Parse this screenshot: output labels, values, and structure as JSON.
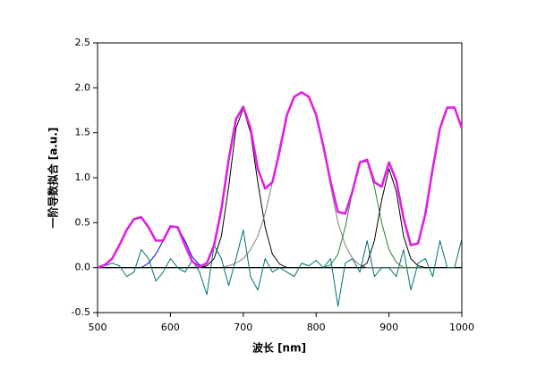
{
  "chart_data": {
    "type": "line",
    "x_label": "波长 [nm]",
    "y_label": "一阶导数拟合 [a.u.]",
    "x": [
      500,
      510,
      520,
      530,
      540,
      550,
      560,
      570,
      580,
      590,
      600,
      610,
      620,
      630,
      640,
      650,
      660,
      670,
      680,
      690,
      700,
      710,
      720,
      730,
      740,
      750,
      760,
      770,
      780,
      790,
      800,
      810,
      820,
      830,
      840,
      850,
      860,
      870,
      880,
      890,
      900,
      910,
      920,
      930,
      940,
      950,
      960,
      970,
      980,
      990,
      1000
    ],
    "series": [
      {
        "color": "#808000",
        "width": 1.2,
        "values": [
          0,
          0,
          0,
          0,
          0,
          0,
          0,
          0,
          0,
          0,
          0,
          0,
          0,
          0,
          0,
          0,
          0,
          0,
          0,
          0,
          0,
          0,
          0,
          0,
          0,
          0,
          0,
          0,
          0,
          0,
          0,
          0,
          0,
          0,
          0,
          0,
          0,
          0,
          0,
          0,
          0,
          0,
          0,
          0,
          0,
          0,
          0,
          0,
          0,
          0,
          0
        ]
      },
      {
        "color": "#0000cc",
        "width": 1,
        "values": [
          0,
          0,
          0,
          0,
          0,
          0,
          0,
          0.05,
          0.15,
          0.3,
          0.45,
          0.45,
          0.3,
          0.12,
          0.03,
          0,
          0,
          0,
          0,
          0,
          0,
          0,
          0,
          0,
          0,
          0,
          0,
          0,
          0,
          0,
          0,
          0,
          0,
          0,
          0,
          0,
          0,
          0,
          0,
          0,
          0,
          0,
          0,
          0,
          0,
          0,
          0,
          0,
          0,
          0,
          0
        ]
      },
      {
        "color": "#000000",
        "width": 1,
        "values": [
          0,
          0,
          0,
          0,
          0,
          0,
          0,
          0,
          0,
          0,
          0,
          0,
          0,
          0,
          0,
          0.02,
          0.1,
          0.35,
          0.9,
          1.55,
          1.77,
          1.5,
          0.95,
          0.45,
          0.15,
          0.04,
          0,
          0,
          0,
          0,
          0,
          0,
          0,
          0,
          0,
          0,
          0,
          0,
          0,
          0,
          0,
          0,
          0,
          0,
          0,
          0,
          0,
          0,
          0,
          0,
          0
        ]
      },
      {
        "color": "#808080",
        "width": 1,
        "values": [
          0,
          0,
          0,
          0,
          0,
          0,
          0,
          0,
          0,
          0,
          0,
          0,
          0,
          0,
          0,
          0,
          0,
          0,
          0.02,
          0.05,
          0.1,
          0.2,
          0.35,
          0.6,
          0.95,
          1.35,
          1.7,
          1.9,
          1.95,
          1.9,
          1.7,
          1.35,
          0.9,
          0.5,
          0.25,
          0.1,
          0.03,
          0,
          0,
          0,
          0,
          0,
          0,
          0,
          0,
          0,
          0,
          0,
          0,
          0,
          0
        ]
      },
      {
        "color": "#2e7d32",
        "width": 1,
        "values": [
          0,
          0,
          0,
          0,
          0,
          0,
          0,
          0,
          0,
          0,
          0,
          0,
          0,
          0,
          0,
          0,
          0,
          0,
          0,
          0,
          0,
          0,
          0,
          0,
          0,
          0,
          0,
          0,
          0,
          0,
          0,
          0,
          0.03,
          0.15,
          0.45,
          0.85,
          1.17,
          1.18,
          0.9,
          0.5,
          0.2,
          0.06,
          0,
          0,
          0,
          0,
          0,
          0,
          0,
          0,
          0
        ]
      },
      {
        "color": "#000000",
        "width": 1,
        "values": [
          0,
          0,
          0,
          0,
          0,
          0,
          0,
          0,
          0,
          0,
          0,
          0,
          0,
          0,
          0,
          0,
          0,
          0,
          0,
          0,
          0,
          0,
          0,
          0,
          0,
          0,
          0,
          0,
          0,
          0,
          0,
          0,
          0,
          0,
          0,
          0,
          0,
          0.05,
          0.3,
          0.75,
          1.1,
          0.85,
          0.35,
          0.1,
          0.02,
          0,
          0,
          0,
          0,
          0,
          0
        ]
      },
      {
        "color": "#007070",
        "width": 1,
        "values": [
          0,
          0.02,
          0.05,
          0.02,
          -0.1,
          -0.05,
          0.2,
          0.1,
          -0.15,
          -0.05,
          0.1,
          0,
          -0.05,
          0.08,
          -0.05,
          -0.3,
          0.25,
          0.1,
          -0.2,
          0.1,
          0.42,
          -0.1,
          -0.25,
          0.1,
          -0.05,
          0,
          -0.05,
          -0.1,
          0.05,
          0.02,
          0.08,
          0,
          0.1,
          -0.43,
          0.05,
          0.1,
          -0.05,
          0.3,
          -0.1,
          0,
          0,
          -0.1,
          0.2,
          -0.25,
          0.05,
          0.1,
          -0.1,
          0.3,
          0,
          0,
          0.32
        ]
      },
      {
        "color": "#e020e0",
        "width": 2.6,
        "values": [
          0,
          0.03,
          0.1,
          0.25,
          0.42,
          0.54,
          0.56,
          0.45,
          0.3,
          0.3,
          0.46,
          0.45,
          0.25,
          0.07,
          0.01,
          0.05,
          0.25,
          0.65,
          1.2,
          1.65,
          1.79,
          1.55,
          1.1,
          0.88,
          0.95,
          1.3,
          1.7,
          1.9,
          1.95,
          1.9,
          1.7,
          1.35,
          0.95,
          0.62,
          0.6,
          0.85,
          1.17,
          1.2,
          0.95,
          0.9,
          1.17,
          0.97,
          0.55,
          0.25,
          0.27,
          0.6,
          1.1,
          1.55,
          1.78,
          1.78,
          1.55
        ]
      }
    ],
    "xlim": [
      500,
      1000
    ],
    "xticks": [
      500,
      600,
      700,
      800,
      900,
      1000
    ],
    "ylim": [
      -0.5,
      2.5
    ],
    "yticks": [
      -0.5,
      {
        "value": 0,
        "label": "0.0"
      },
      0.5,
      {
        "value": 1,
        "label": "1.0"
      },
      1.5,
      {
        "value": 2,
        "label": "2.0"
      },
      2.5
    ]
  }
}
